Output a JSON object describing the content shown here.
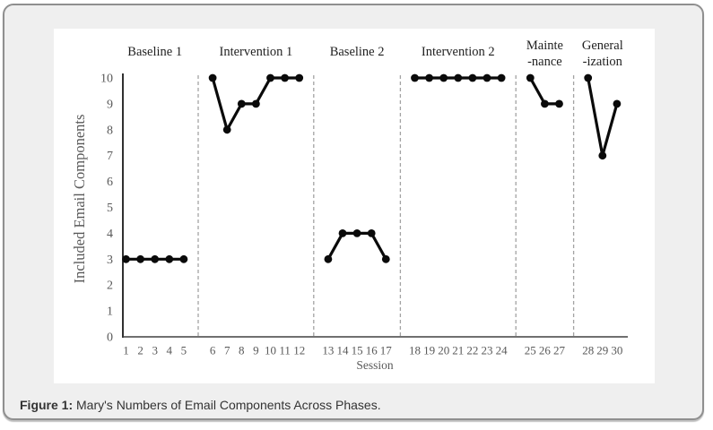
{
  "caption": {
    "prefix": "Figure 1:",
    "text": " Mary's Numbers of Email Components Across Phases."
  },
  "chart_data": {
    "type": "line",
    "title": "",
    "xlabel": "Session",
    "ylabel": "Included Email Components",
    "ylim": [
      0,
      10
    ],
    "yticks": [
      0,
      1,
      2,
      3,
      4,
      5,
      6,
      7,
      8,
      9,
      10
    ],
    "grid": false,
    "legend": "none",
    "marker": "filled-circle",
    "phase_divider_style": "dashed",
    "phases": [
      {
        "label_lines": [
          "Baseline 1"
        ],
        "sessions": [
          1,
          2,
          3,
          4,
          5
        ],
        "values": [
          3,
          3,
          3,
          3,
          3
        ]
      },
      {
        "label_lines": [
          "Intervention 1"
        ],
        "sessions": [
          6,
          7,
          8,
          9,
          10,
          11,
          12
        ],
        "values": [
          10,
          8,
          9,
          9,
          10,
          10,
          10
        ]
      },
      {
        "label_lines": [
          "Baseline 2"
        ],
        "sessions": [
          13,
          14,
          15,
          16,
          17
        ],
        "values": [
          3,
          4,
          4,
          4,
          3
        ]
      },
      {
        "label_lines": [
          "Intervention 2"
        ],
        "sessions": [
          18,
          19,
          20,
          21,
          22,
          23,
          24
        ],
        "values": [
          10,
          10,
          10,
          10,
          10,
          10,
          10
        ]
      },
      {
        "label_lines": [
          "Mainte",
          "-nance"
        ],
        "sessions": [
          25,
          26,
          27
        ],
        "values": [
          10,
          9,
          9
        ]
      },
      {
        "label_lines": [
          "General",
          "-ization"
        ],
        "sessions": [
          28,
          29,
          30
        ],
        "values": [
          10,
          7,
          9
        ]
      }
    ],
    "colors": {
      "line": "#0a0a0a",
      "marker": "#0a0a0a",
      "divider": "#a3a3a3",
      "axis": "#404040",
      "tick_text": "#595959",
      "phase_label_text": "#1f1f1f",
      "card_background": "#efefef",
      "plot_background": "#ffffff"
    }
  }
}
